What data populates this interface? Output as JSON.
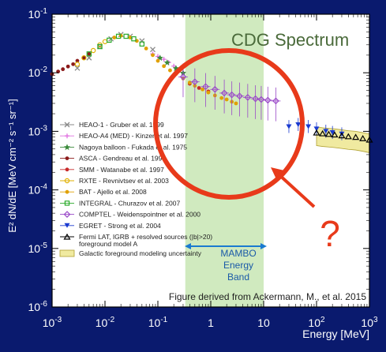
{
  "chart_data": {
    "type": "scatter",
    "title": "CDG Spectrum",
    "xlabel": "Energy [MeV]",
    "ylabel": "E² dN/dE [MeV cm⁻² s⁻¹ sr⁻¹]",
    "x_scale": "log",
    "y_scale": "log",
    "xlim": [
      0.001,
      1000
    ],
    "ylim": [
      1e-06,
      0.1
    ],
    "x_ticks": [
      {
        "v": 0.001,
        "b": "10",
        "e": "-3"
      },
      {
        "v": 0.01,
        "b": "10",
        "e": "-2"
      },
      {
        "v": 0.1,
        "b": "10",
        "e": "-1"
      },
      {
        "v": 1,
        "b": "1",
        "e": ""
      },
      {
        "v": 10,
        "b": "10",
        "e": ""
      },
      {
        "v": 100,
        "b": "10",
        "e": "2"
      },
      {
        "v": 1000,
        "b": "10",
        "e": "3"
      }
    ],
    "y_ticks": [
      {
        "v": 0.1,
        "b": "10",
        "e": "-1"
      },
      {
        "v": 0.01,
        "b": "10",
        "e": "-2"
      },
      {
        "v": 0.001,
        "b": "10",
        "e": "-3"
      },
      {
        "v": 0.0001,
        "b": "10",
        "e": "-4"
      },
      {
        "v": 1e-05,
        "b": "10",
        "e": "-5"
      },
      {
        "v": 1e-06,
        "b": "10",
        "e": "-6"
      }
    ],
    "band": {
      "x_range": [
        0.33,
        10
      ],
      "label_lines": [
        "MAMBO",
        "Energy",
        "Band"
      ],
      "color": "#c8e6b4"
    },
    "credit": "Figure derived from Ackermann, M., et al. 2015",
    "question_mark": "?",
    "legend": [
      {
        "name": "HEAO-1 - Gruber et al. 1999",
        "color": "#888888",
        "marker": "x"
      },
      {
        "name": "HEAO-A4 (MED) - Kinzer et al. 1997",
        "color": "#e070e0",
        "marker": "plus"
      },
      {
        "name": "Nagoya balloon - Fukada et al. 1975",
        "color": "#3a8a3a",
        "marker": "star"
      },
      {
        "name": "ASCA - Gendreau et al. 1995",
        "color": "#8b1a1a",
        "marker": "dot"
      },
      {
        "name": "SMM - Watanabe et al. 1997",
        "color": "#c82a2a",
        "marker": "dot"
      },
      {
        "name": "RXTE - Revnivtsev et al. 2003",
        "color": "#e0b000",
        "marker": "circle"
      },
      {
        "name": "BAT - Ajello et al. 2008",
        "color": "#e0a000",
        "marker": "dot"
      },
      {
        "name": "INTEGRAL - Churazov et al. 2007",
        "color": "#2aaa2a",
        "marker": "square"
      },
      {
        "name": "COMPTEL - Weidenspointner et al. 2000",
        "color": "#9a4ac8",
        "marker": "diamond"
      },
      {
        "name": "EGRET - Strong et al. 2004",
        "color": "#1a3ad0",
        "marker": "triangle"
      },
      {
        "name": "Fermi LAT, IGRB + resolved sources (|b|>20)",
        "name2": "foreground model A",
        "color": "#000000",
        "marker": "triangle-open"
      },
      {
        "name": "Galactic foreground modeling uncertainty",
        "color": "#f0eaa0",
        "marker": "box"
      }
    ],
    "series": [
      {
        "name": "HEAO-1 - Gruber et al. 1999",
        "color": "#888888",
        "marker": "x",
        "x": [
          0.003,
          0.005,
          0.008,
          0.013,
          0.02,
          0.03,
          0.05,
          0.08
        ],
        "y": [
          0.012,
          0.018,
          0.028,
          0.038,
          0.045,
          0.042,
          0.035,
          0.025
        ]
      },
      {
        "name": "HEAO-A4 (MED) - Kinzer et al. 1997",
        "color": "#e070e0",
        "marker": "plus",
        "x": [
          0.08,
          0.1,
          0.13,
          0.16,
          0.2,
          0.25,
          0.3
        ],
        "y": [
          0.021,
          0.019,
          0.017,
          0.015,
          0.013,
          0.011,
          0.01
        ]
      },
      {
        "name": "Nagoya balloon - Fukada et al. 1975",
        "color": "#3a8a3a",
        "marker": "star",
        "x": [
          0.11,
          0.15,
          0.22,
          0.3
        ],
        "y": [
          0.018,
          0.015,
          0.012,
          0.01
        ]
      },
      {
        "name": "ASCA - Gendreau et al. 1995",
        "color": "#8b1a1a",
        "marker": "dot",
        "x": [
          0.001,
          0.0013,
          0.0016,
          0.002,
          0.0025,
          0.003,
          0.004,
          0.005
        ],
        "y": [
          0.0095,
          0.0105,
          0.0115,
          0.0128,
          0.014,
          0.016,
          0.018,
          0.021
        ]
      },
      {
        "name": "SMM - Watanabe et al. 1997",
        "color": "#c82a2a",
        "marker": "dot",
        "x": [
          0.4,
          0.6,
          0.9
        ],
        "y": [
          0.0065,
          0.0055,
          0.0048
        ]
      },
      {
        "name": "RXTE - Revnivtsev et al. 2003",
        "color": "#e0b000",
        "marker": "circle",
        "x": [
          0.003,
          0.004,
          0.006,
          0.008,
          0.01
        ],
        "y": [
          0.014,
          0.018,
          0.024,
          0.03,
          0.034
        ]
      },
      {
        "name": "BAT - Ajello et al. 2008",
        "color": "#e0a000",
        "marker": "dot",
        "x": [
          0.015,
          0.02,
          0.03,
          0.04,
          0.06,
          0.08,
          0.1,
          0.13,
          0.17,
          0.22,
          0.3,
          0.4,
          0.5,
          0.7,
          0.9,
          1.2,
          1.6,
          2.0,
          2.5,
          3.0
        ],
        "y": [
          0.04,
          0.043,
          0.04,
          0.035,
          0.026,
          0.02,
          0.016,
          0.013,
          0.011,
          0.0095,
          0.008,
          0.0068,
          0.006,
          0.0052,
          0.0046,
          0.0041,
          0.0037,
          0.0035,
          0.0032,
          0.003
        ]
      },
      {
        "name": "INTEGRAL - Churazov et al. 2007",
        "color": "#2aaa2a",
        "marker": "square",
        "x": [
          0.005,
          0.008,
          0.012,
          0.018,
          0.025,
          0.035,
          0.05
        ],
        "y": [
          0.021,
          0.028,
          0.036,
          0.042,
          0.042,
          0.038,
          0.031
        ]
      },
      {
        "name": "COMPTEL - Weidenspointner et al. 2000",
        "color": "#9a4ac8",
        "marker": "diamond",
        "x": [
          0.3,
          0.5,
          0.8,
          1.2,
          1.8,
          2.5,
          3.5,
          5,
          7,
          9,
          12,
          17
        ],
        "y": [
          0.0085,
          0.007,
          0.0058,
          0.0052,
          0.0045,
          0.0042,
          0.004,
          0.0038,
          0.0036,
          0.0035,
          0.0034,
          0.0033
        ]
      },
      {
        "name": "EGRET - Strong et al. 2004",
        "color": "#1a3ad0",
        "marker": "triangle",
        "x": [
          30,
          45,
          70,
          100,
          150,
          200,
          300
        ],
        "y": [
          0.0012,
          0.0013,
          0.0012,
          0.0011,
          0.001,
          0.00095,
          0.0009
        ]
      },
      {
        "name": "Fermi LAT, IGRB + resolved sources (|b|>20) foreground model A",
        "color": "#000000",
        "marker": "triangle-open",
        "x": [
          100,
          130,
          170,
          220,
          300,
          400,
          550,
          750,
          1000
        ],
        "y": [
          0.00095,
          0.00092,
          0.0009,
          0.00088,
          0.00085,
          0.00082,
          0.0008,
          0.00076,
          0.00072
        ]
      }
    ]
  }
}
